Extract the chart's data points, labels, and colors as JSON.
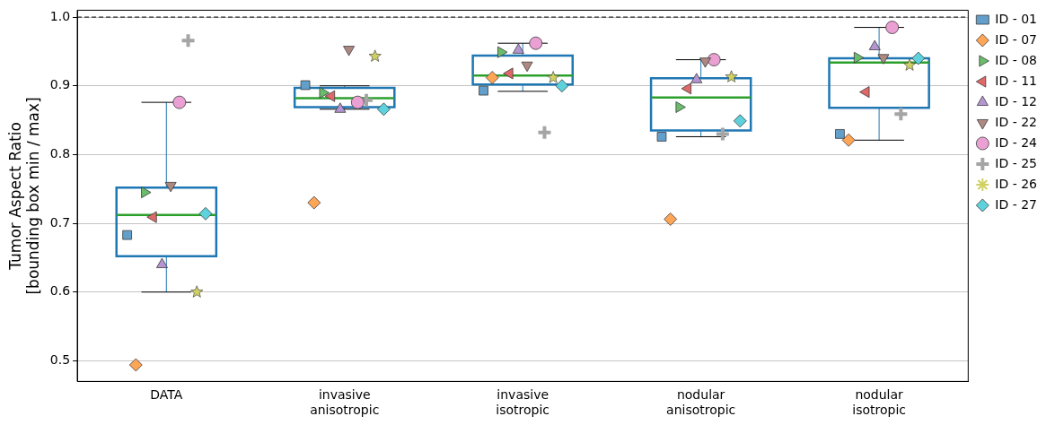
{
  "chart_data": {
    "type": "box",
    "ylabel": "Tumor Aspect Ratio\n[bounding box min / max]",
    "categories": [
      "DATA",
      "invasive\nanisotropic",
      "invasive\nisotropic",
      "nodular\nanisotropic",
      "nodular\nisotropic"
    ],
    "boxes": [
      {
        "low": 0.6,
        "q1": 0.652,
        "median": 0.712,
        "q3": 0.752,
        "high": 0.876
      },
      {
        "low": 0.866,
        "q1": 0.869,
        "median": 0.882,
        "q3": 0.897,
        "high": 0.9
      },
      {
        "low": 0.892,
        "q1": 0.902,
        "median": 0.915,
        "q3": 0.944,
        "high": 0.962
      },
      {
        "low": 0.826,
        "q1": 0.835,
        "median": 0.883,
        "q3": 0.911,
        "high": 0.938
      },
      {
        "low": 0.821,
        "q1": 0.868,
        "median": 0.934,
        "q3": 0.94,
        "high": 0.985
      }
    ],
    "series": [
      {
        "name": "ID - 01",
        "type": "scatter",
        "marker": "square",
        "color": "#629fcb",
        "values": [
          0.683,
          0.901,
          0.893,
          0.826,
          0.83
        ]
      },
      {
        "name": "ID - 07",
        "type": "scatter",
        "marker": "diamond",
        "color": "#ffa556",
        "values": [
          0.494,
          0.73,
          0.912,
          0.706,
          0.821
        ]
      },
      {
        "name": "ID - 08",
        "type": "scatter",
        "marker": "triangle-right",
        "color": "#6bbc6b",
        "values": [
          0.745,
          0.89,
          0.949,
          0.869,
          0.941
        ]
      },
      {
        "name": "ID - 11",
        "type": "scatter",
        "marker": "triangle-left",
        "color": "#e06869",
        "values": [
          0.709,
          0.885,
          0.918,
          0.896,
          0.891
        ]
      },
      {
        "name": "ID - 12",
        "type": "scatter",
        "marker": "triangle",
        "color": "#b495d1",
        "values": [
          0.64,
          0.866,
          0.952,
          0.909,
          0.957
        ]
      },
      {
        "name": "ID - 22",
        "type": "scatter",
        "marker": "triangle-down",
        "color": "#af8981",
        "values": [
          0.755,
          0.953,
          0.93,
          0.936,
          0.941
        ]
      },
      {
        "name": "ID - 24",
        "type": "scatter",
        "marker": "circle",
        "color": "#eba0d4",
        "values": [
          0.876,
          0.876,
          0.962,
          0.938,
          0.985
        ]
      },
      {
        "name": "ID - 25",
        "type": "scatter",
        "marker": "cross",
        "color": "#a5a5a5",
        "values": [
          0.966,
          0.879,
          0.832,
          0.83,
          0.859
        ]
      },
      {
        "name": "ID - 26",
        "type": "scatter",
        "marker": "star",
        "color": "#d0d164",
        "values": [
          0.6,
          0.943,
          0.912,
          0.913,
          0.93
        ]
      },
      {
        "name": "ID - 27",
        "type": "scatter",
        "marker": "diamond",
        "color": "#5dd2dd",
        "values": [
          0.714,
          0.866,
          0.9,
          0.849,
          0.94
        ]
      }
    ],
    "ylim": [
      0.47,
      1.01
    ],
    "yticks": [
      0.5,
      0.6,
      0.7,
      0.8,
      0.9,
      {
        "value": 1,
        "label": "1.0"
      }
    ],
    "ref_lines": [
      {
        "axis": "y",
        "value": 1,
        "color": "#000000",
        "line_style": "dashed"
      }
    ],
    "grid": "y",
    "legend": "right"
  }
}
